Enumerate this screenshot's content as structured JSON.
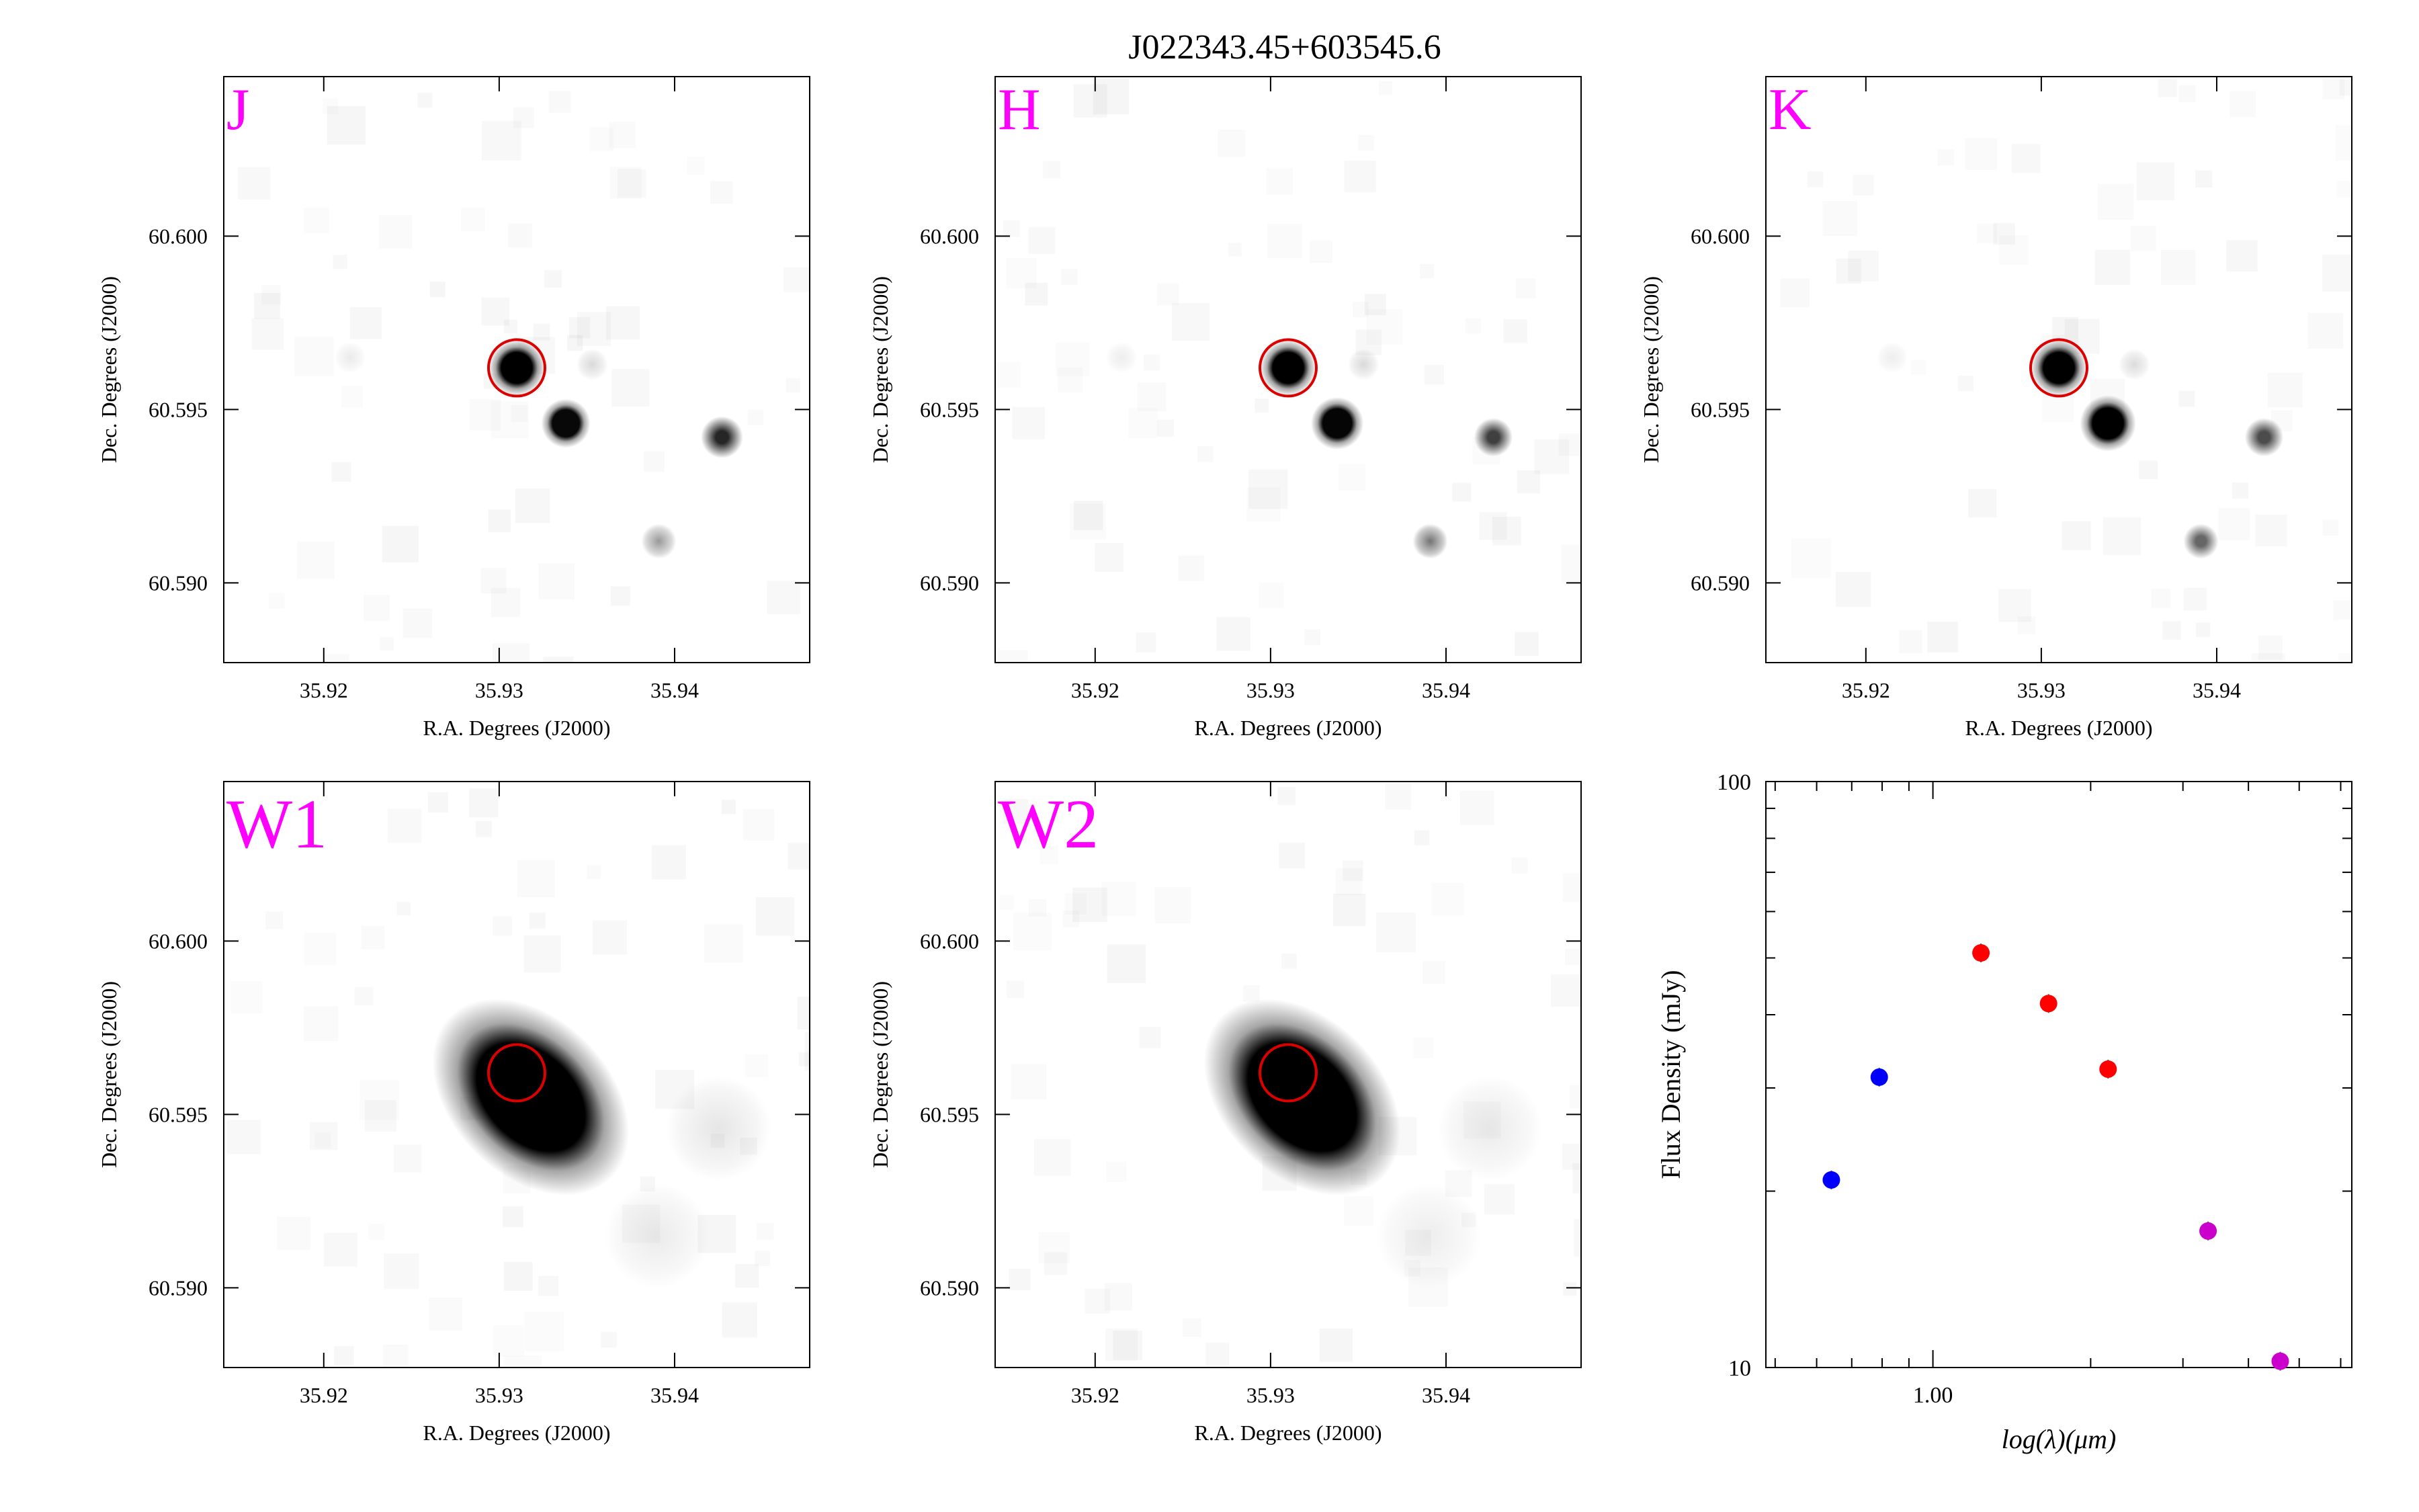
{
  "figure": {
    "title": "J022343.45+603545.6"
  },
  "chart_data": [
    {
      "type": "image",
      "band": "J",
      "label_color": "#ff00ff",
      "xlabel": "R.A. Degrees (J2000)",
      "ylabel": "Dec. Degrees (J2000)",
      "x_ticks": [
        "35.92",
        "35.93",
        "35.94"
      ],
      "y_ticks": [
        "60.600",
        "60.595",
        "60.590"
      ],
      "target_circle_color": "#dd0000",
      "sources": [
        {
          "ra": 35.931,
          "dec": 60.5962,
          "intensity": 1.0,
          "size": 0.0016
        },
        {
          "ra": 35.9338,
          "dec": 60.5946,
          "intensity": 0.97,
          "size": 0.0014
        },
        {
          "ra": 35.9427,
          "dec": 60.5942,
          "intensity": 0.85,
          "size": 0.0012
        },
        {
          "ra": 35.9391,
          "dec": 60.5912,
          "intensity": 0.4,
          "size": 0.001
        },
        {
          "ra": 35.9353,
          "dec": 60.5963,
          "intensity": 0.15,
          "size": 0.0009
        },
        {
          "ra": 35.9215,
          "dec": 60.5965,
          "intensity": 0.08,
          "size": 0.0009
        }
      ]
    },
    {
      "type": "image",
      "band": "H",
      "label_color": "#ff00ff",
      "xlabel": "R.A. Degrees (J2000)",
      "ylabel": "Dec. Degrees (J2000)",
      "x_ticks": [
        "35.92",
        "35.93",
        "35.94"
      ],
      "y_ticks": [
        "60.600",
        "60.595",
        "60.590"
      ],
      "target_circle_color": "#dd0000",
      "sources": [
        {
          "ra": 35.931,
          "dec": 60.5962,
          "intensity": 1.0,
          "size": 0.0016
        },
        {
          "ra": 35.9338,
          "dec": 60.5946,
          "intensity": 0.98,
          "size": 0.0015
        },
        {
          "ra": 35.9427,
          "dec": 60.5942,
          "intensity": 0.75,
          "size": 0.0011
        },
        {
          "ra": 35.9391,
          "dec": 60.5912,
          "intensity": 0.55,
          "size": 0.001
        },
        {
          "ra": 35.9353,
          "dec": 60.5963,
          "intensity": 0.15,
          "size": 0.0009
        },
        {
          "ra": 35.9215,
          "dec": 60.5965,
          "intensity": 0.07,
          "size": 0.0009
        }
      ]
    },
    {
      "type": "image",
      "band": "K",
      "label_color": "#ff00ff",
      "xlabel": "R.A. Degrees (J2000)",
      "ylabel": "Dec. Degrees (J2000)",
      "x_ticks": [
        "35.92",
        "35.93",
        "35.94"
      ],
      "y_ticks": [
        "60.600",
        "60.595",
        "60.590"
      ],
      "target_circle_color": "#dd0000",
      "sources": [
        {
          "ra": 35.931,
          "dec": 60.5962,
          "intensity": 1.0,
          "size": 0.0016
        },
        {
          "ra": 35.9338,
          "dec": 60.5946,
          "intensity": 1.0,
          "size": 0.0016
        },
        {
          "ra": 35.9427,
          "dec": 60.5942,
          "intensity": 0.7,
          "size": 0.0011
        },
        {
          "ra": 35.9391,
          "dec": 60.5912,
          "intensity": 0.6,
          "size": 0.001
        },
        {
          "ra": 35.9353,
          "dec": 60.5963,
          "intensity": 0.14,
          "size": 0.0009
        },
        {
          "ra": 35.9215,
          "dec": 60.5965,
          "intensity": 0.07,
          "size": 0.0009
        }
      ]
    },
    {
      "type": "image",
      "band": "W1",
      "label_color": "#ff00ff",
      "xlabel": "R.A. Degrees (J2000)",
      "ylabel": "Dec. Degrees (J2000)",
      "x_ticks": [
        "35.92",
        "35.93",
        "35.94"
      ],
      "y_ticks": [
        "60.600",
        "60.595",
        "60.590"
      ],
      "target_circle_color": "#dd0000",
      "sources": [
        {
          "ra": 35.9318,
          "dec": 60.5955,
          "intensity": 1.0,
          "size": 0.0045,
          "elongation": 1.45
        },
        {
          "ra": 35.9425,
          "dec": 60.5946,
          "intensity": 0.1,
          "size": 0.003
        },
        {
          "ra": 35.939,
          "dec": 60.5915,
          "intensity": 0.08,
          "size": 0.003
        }
      ]
    },
    {
      "type": "image",
      "band": "W2",
      "label_color": "#ff00ff",
      "xlabel": "R.A. Degrees (J2000)",
      "ylabel": "Dec. Degrees (J2000)",
      "x_ticks": [
        "35.92",
        "35.93",
        "35.94"
      ],
      "y_ticks": [
        "60.600",
        "60.595",
        "60.590"
      ],
      "target_circle_color": "#dd0000",
      "sources": [
        {
          "ra": 35.9318,
          "dec": 60.5955,
          "intensity": 1.0,
          "size": 0.0045,
          "elongation": 1.45
        },
        {
          "ra": 35.9425,
          "dec": 60.5946,
          "intensity": 0.08,
          "size": 0.003
        },
        {
          "ra": 35.939,
          "dec": 60.5915,
          "intensity": 0.07,
          "size": 0.003
        }
      ]
    },
    {
      "type": "scatter",
      "xlabel": "log(λ)(μm)",
      "ylabel": "Flux Density (mJy)",
      "x_scale": "log",
      "y_scale": "log",
      "ylim": [
        10,
        100
      ],
      "y_tick_labels": [
        "10",
        "100"
      ],
      "x_tick_labels": [
        "1.00"
      ],
      "grid": false,
      "series": [
        {
          "color": "#0000ff",
          "points": [
            {
              "x": 0.64,
              "y": 20.9
            },
            {
              "x": 0.79,
              "y": 31.3
            }
          ]
        },
        {
          "color": "#ff0000",
          "points": [
            {
              "x": 1.235,
              "y": 51.0
            },
            {
              "x": 1.662,
              "y": 41.8
            },
            {
              "x": 2.159,
              "y": 32.3
            }
          ]
        },
        {
          "color": "#cc00cc",
          "points": [
            {
              "x": 3.35,
              "y": 17.1
            },
            {
              "x": 4.6,
              "y": 10.25
            }
          ]
        }
      ]
    }
  ]
}
